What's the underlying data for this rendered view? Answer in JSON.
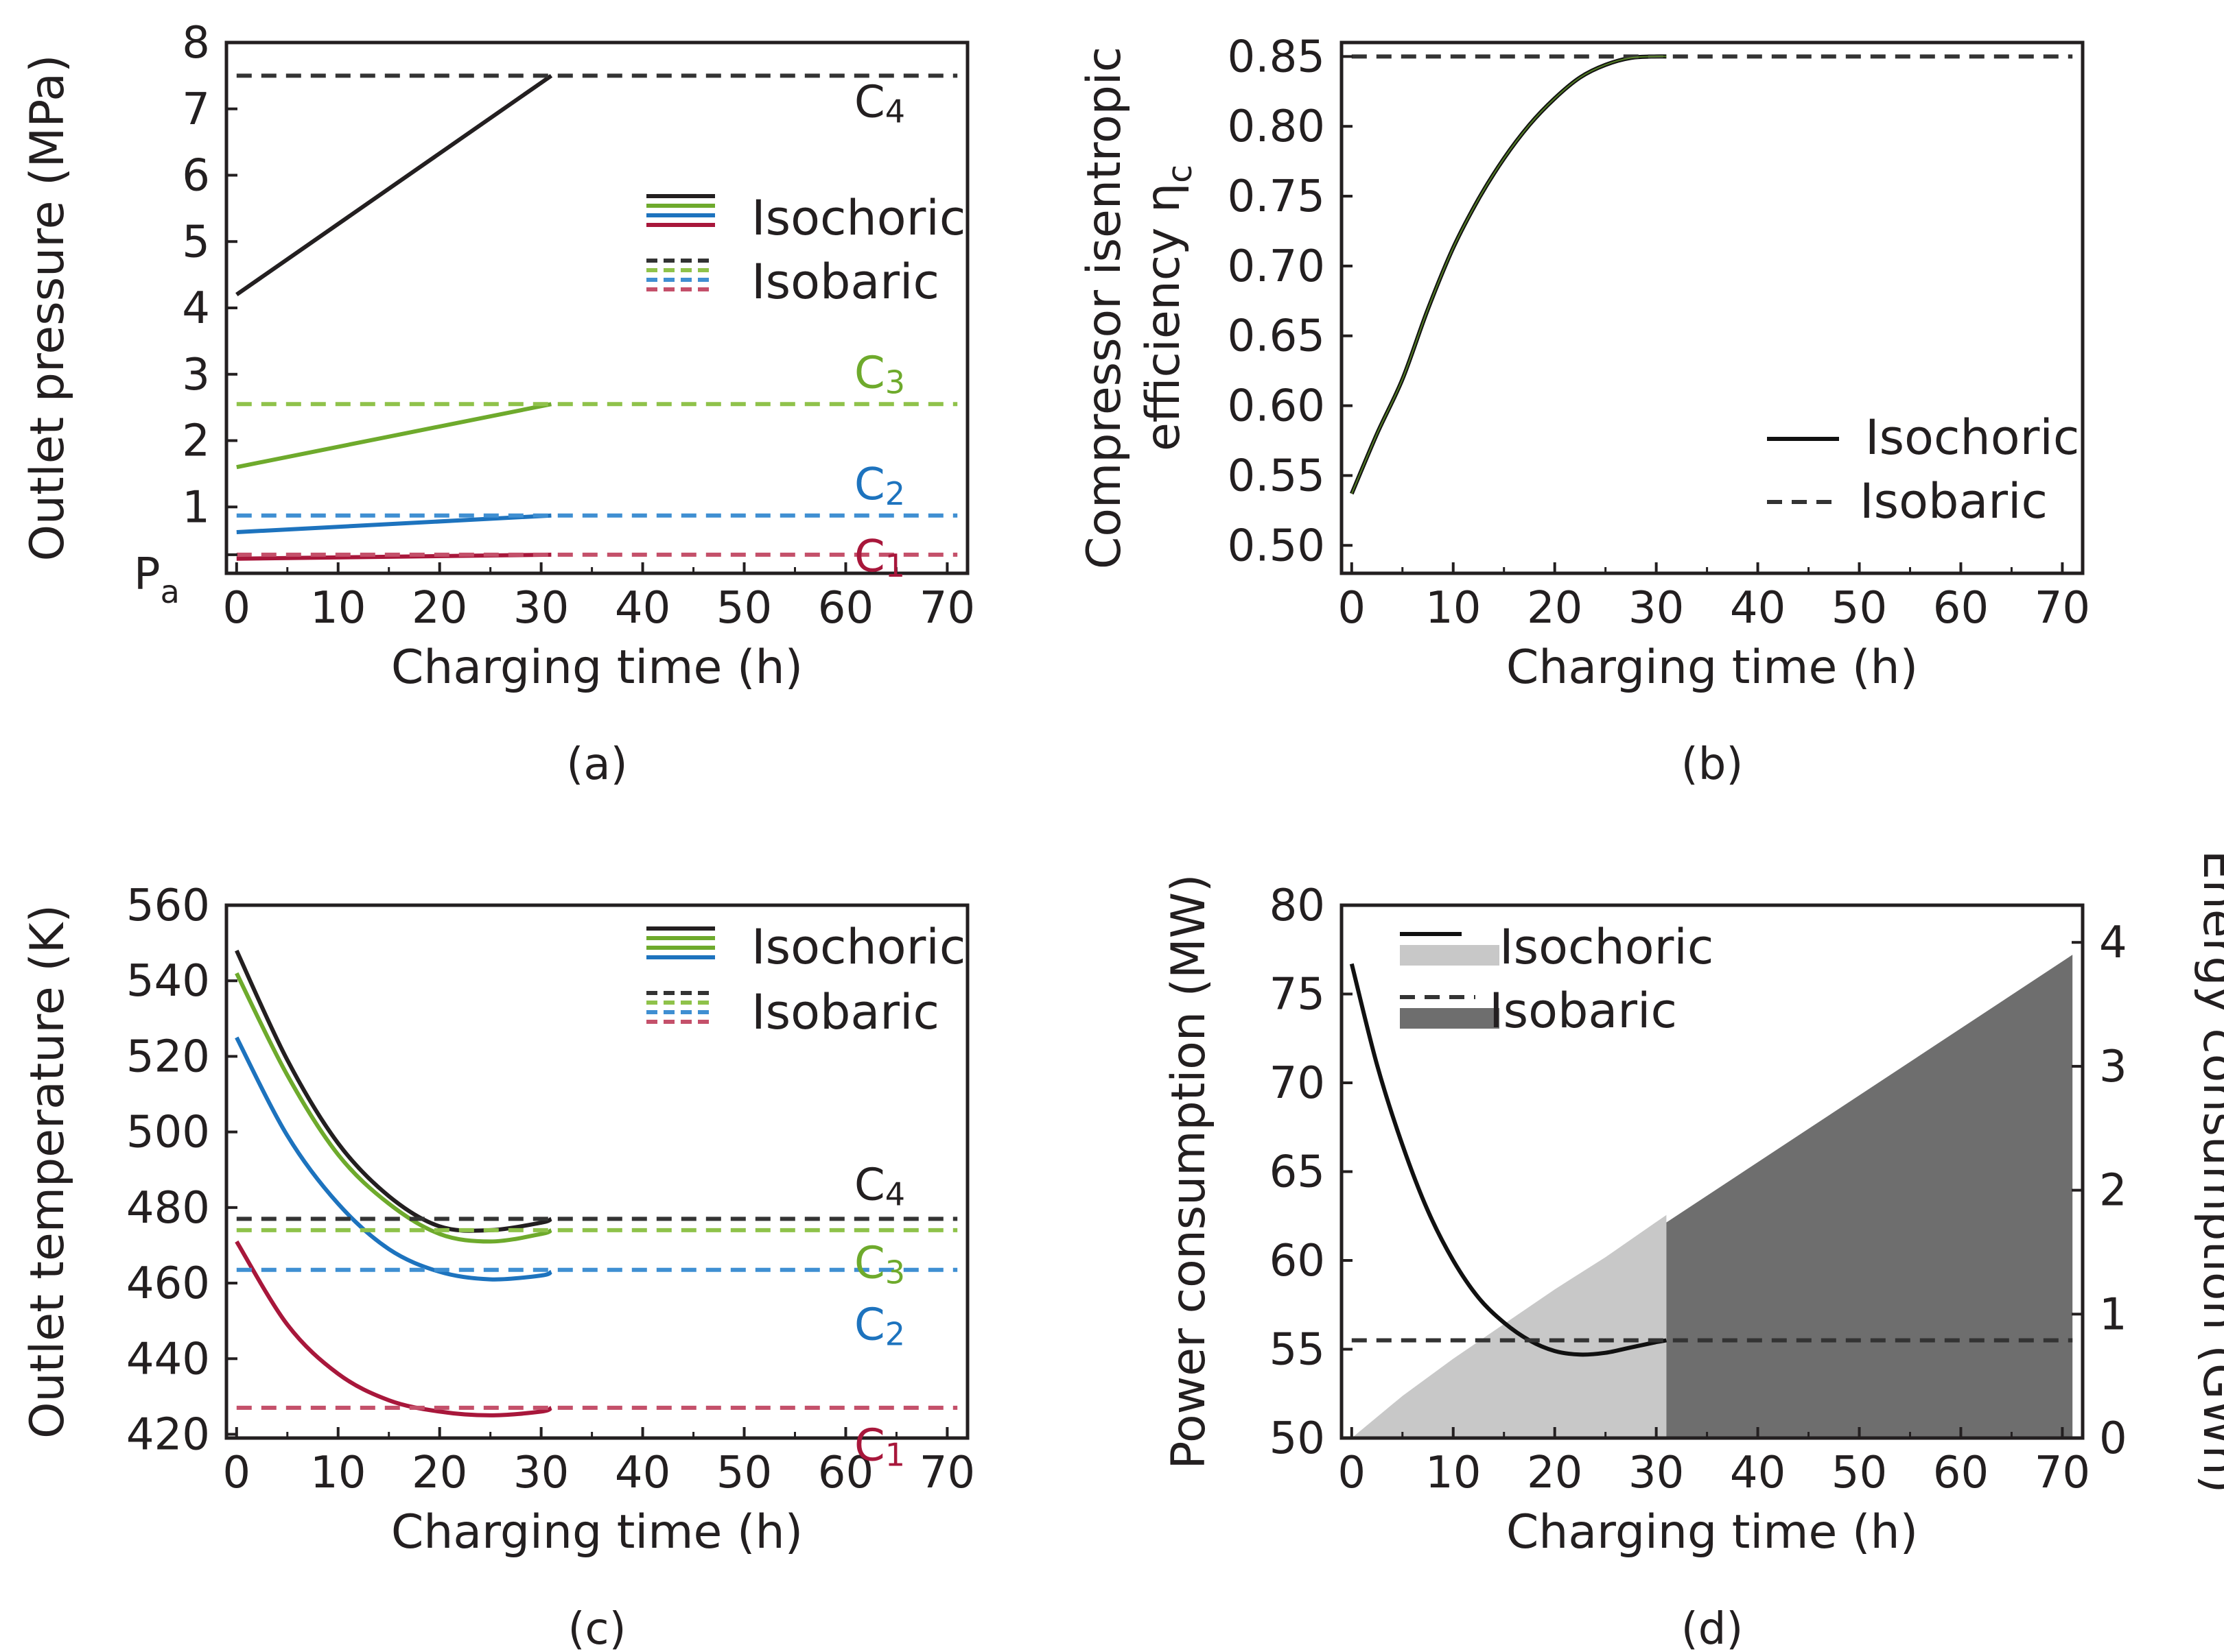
{
  "chart_data": [
    {
      "id": "a",
      "type": "line",
      "caption": "(a)",
      "xlabel": "Charging time (h)",
      "ylabel": "Outlet pressure (MPa)",
      "xlim": [
        -1,
        72
      ],
      "ylim": [
        0,
        8
      ],
      "xticks": [
        "0",
        "10",
        "20",
        "30",
        "40",
        "50",
        "60",
        "70"
      ],
      "yticks": [
        "1",
        "2",
        "3",
        "4",
        "5",
        "6",
        "7",
        "8"
      ],
      "extra_tick": {
        "base": "P",
        "sub": "a",
        "value": 0.28
      },
      "legend": [
        "Isochoric",
        "Isobaric"
      ],
      "stage_labels": [
        {
          "base": "C",
          "sub": "4",
          "value": 7.5,
          "color": "#231f20"
        },
        {
          "base": "C",
          "sub": "3",
          "value": 2.55,
          "color": "#6eaa2c"
        },
        {
          "base": "C",
          "sub": "2",
          "value": 0.87,
          "color": "#1d73be"
        },
        {
          "base": "C",
          "sub": "1",
          "value": 0.28,
          "color": "#a8173b"
        }
      ],
      "series": [
        {
          "name": "Isochoric C4",
          "style": "solid",
          "color": "#231f20",
          "x": [
            0,
            31
          ],
          "y": [
            4.2,
            7.5
          ]
        },
        {
          "name": "Isochoric C3",
          "style": "solid",
          "color": "#6eaa2c",
          "x": [
            0,
            31
          ],
          "y": [
            1.6,
            2.55
          ]
        },
        {
          "name": "Isochoric C2",
          "style": "solid",
          "color": "#1d73be",
          "x": [
            0,
            31
          ],
          "y": [
            0.62,
            0.87
          ]
        },
        {
          "name": "Isochoric C1",
          "style": "solid",
          "color": "#a8173b",
          "x": [
            0,
            31
          ],
          "y": [
            0.22,
            0.28
          ]
        },
        {
          "name": "Isobaric C4",
          "style": "dashed",
          "color": "#333333",
          "x": [
            0,
            71
          ],
          "y": [
            7.5,
            7.5
          ]
        },
        {
          "name": "Isobaric C3",
          "style": "dashed",
          "color": "#8fc24a",
          "x": [
            0,
            71
          ],
          "y": [
            2.55,
            2.55
          ]
        },
        {
          "name": "Isobaric C2",
          "style": "dashed",
          "color": "#3f8fd2",
          "x": [
            0,
            71
          ],
          "y": [
            0.87,
            0.87
          ]
        },
        {
          "name": "Isobaric C1",
          "style": "dashed",
          "color": "#c4506a",
          "x": [
            0,
            71
          ],
          "y": [
            0.28,
            0.28
          ]
        }
      ]
    },
    {
      "id": "b",
      "type": "line",
      "caption": "(b)",
      "xlabel": "Charging time (h)",
      "ylabel_line1": "Compressor isentropic",
      "ylabel_line2_base": "efficiency η",
      "ylabel_line2_sub": "c",
      "xlim": [
        -1,
        72
      ],
      "ylim": [
        0.48,
        0.86
      ],
      "xticks": [
        "0",
        "10",
        "20",
        "30",
        "40",
        "50",
        "60",
        "70"
      ],
      "yticks": [
        "0.50",
        "0.55",
        "0.60",
        "0.65",
        "0.70",
        "0.75",
        "0.80",
        "0.85"
      ],
      "legend": [
        "Isochoric",
        "Isobaric"
      ],
      "series": [
        {
          "name": "Isochoric",
          "style": "solid",
          "color": "#111111",
          "x": [
            0,
            2.5,
            5,
            7.5,
            10,
            12.5,
            15,
            17.5,
            20,
            22.5,
            25,
            27.5,
            30,
            31
          ],
          "y": [
            0.537,
            0.58,
            0.619,
            0.669,
            0.713,
            0.748,
            0.777,
            0.801,
            0.82,
            0.835,
            0.844,
            0.849,
            0.85,
            0.85
          ]
        },
        {
          "name": "Isobaric",
          "style": "dashed",
          "color": "#333333",
          "x": [
            0,
            71
          ],
          "y": [
            0.85,
            0.85
          ]
        }
      ]
    },
    {
      "id": "c",
      "type": "line",
      "caption": "(c)",
      "xlabel": "Charging time (h)",
      "ylabel": "Outlet temperature (K)",
      "xlim": [
        -1,
        72
      ],
      "ylim": [
        419,
        560
      ],
      "xticks": [
        "0",
        "10",
        "20",
        "30",
        "40",
        "50",
        "60",
        "70"
      ],
      "yticks": [
        "420",
        "440",
        "460",
        "480",
        "500",
        "520",
        "540",
        "560"
      ],
      "legend": [
        "Isochoric",
        "Isobaric"
      ],
      "stage_labels": [
        {
          "base": "C",
          "sub": "4",
          "value": 481,
          "color": "#231f20"
        },
        {
          "base": "C",
          "sub": "3",
          "value": 469,
          "color": "#6eaa2c"
        },
        {
          "base": "C",
          "sub": "2",
          "value": 457,
          "color": "#1d73be"
        },
        {
          "base": "C",
          "sub": "1",
          "value": 424,
          "color": "#a8173b"
        }
      ],
      "series": [
        {
          "name": "Isochoric C4",
          "style": "solid",
          "color": "#231f20",
          "x": [
            0,
            5,
            10,
            15,
            20,
            25,
            30,
            31
          ],
          "y": [
            548,
            519,
            497,
            483,
            475,
            474,
            476,
            477
          ]
        },
        {
          "name": "Isochoric C3",
          "style": "solid",
          "color": "#6eaa2c",
          "x": [
            0,
            5,
            10,
            15,
            20,
            25,
            30,
            31
          ],
          "y": [
            542,
            515,
            494,
            481,
            473,
            471,
            473,
            474
          ]
        },
        {
          "name": "Isochoric C2",
          "style": "solid",
          "color": "#1d73be",
          "x": [
            0,
            5,
            10,
            15,
            20,
            25,
            30,
            31
          ],
          "y": [
            525,
            499,
            481,
            469,
            463,
            461,
            462,
            463
          ]
        },
        {
          "name": "Isochoric C1",
          "style": "solid",
          "color": "#a8173b",
          "x": [
            0,
            5,
            10,
            15,
            20,
            25,
            30,
            31
          ],
          "y": [
            471,
            449,
            436,
            429,
            426,
            425,
            426,
            427
          ]
        },
        {
          "name": "Isobaric C4",
          "style": "dashed",
          "color": "#333333",
          "x": [
            0,
            71
          ],
          "y": [
            477,
            477
          ]
        },
        {
          "name": "Isobaric C3",
          "style": "dashed",
          "color": "#8fc24a",
          "x": [
            0,
            71
          ],
          "y": [
            474,
            474
          ]
        },
        {
          "name": "Isobaric C2",
          "style": "dashed",
          "color": "#3f8fd2",
          "x": [
            0,
            71
          ],
          "y": [
            463.5,
            463.5
          ]
        },
        {
          "name": "Isobaric C1",
          "style": "dashed",
          "color": "#c4506a",
          "x": [
            0,
            71
          ],
          "y": [
            427,
            427
          ]
        }
      ]
    },
    {
      "id": "d",
      "type": "line",
      "caption": "(d)",
      "xlabel": "Charging time (h)",
      "ylabel": "Power consumption (MW)",
      "y2label": "Energy consumption (GWh)",
      "xlim": [
        -1,
        72
      ],
      "ylim": [
        50,
        80
      ],
      "y2lim": [
        0,
        4.3
      ],
      "xticks": [
        "0",
        "10",
        "20",
        "30",
        "40",
        "50",
        "60",
        "70"
      ],
      "yticks": [
        "50",
        "55",
        "60",
        "65",
        "70",
        "75",
        "80"
      ],
      "y2ticks": [
        "0",
        "1",
        "2",
        "3",
        "4"
      ],
      "legend": [
        "Isochoric",
        "Isobaric"
      ],
      "series": [
        {
          "name": "Isochoric power",
          "style": "solid",
          "color": "#111111",
          "x": [
            0,
            2.5,
            5,
            7.5,
            10,
            12.5,
            15,
            17.5,
            20,
            22.5,
            25,
            27.5,
            30,
            31
          ],
          "y": [
            76.7,
            71.0,
            66.5,
            62.8,
            60.0,
            57.9,
            56.5,
            55.5,
            54.9,
            54.7,
            54.8,
            55.1,
            55.4,
            55.5
          ]
        },
        {
          "name": "Isobaric power",
          "style": "dashed",
          "color": "#333333",
          "x": [
            0,
            71
          ],
          "y": [
            55.5,
            55.5
          ]
        }
      ],
      "areas": [
        {
          "name": "Isochoric energy",
          "color": "#c8c8c8",
          "x": [
            0,
            5,
            10,
            15,
            20,
            25,
            31
          ],
          "y2": [
            0,
            0.34,
            0.64,
            0.92,
            1.2,
            1.46,
            1.8
          ]
        },
        {
          "name": "Isobaric energy",
          "color": "#6e6e6e",
          "x": [
            31,
            71
          ],
          "y2": [
            1.74,
            3.9
          ]
        }
      ]
    }
  ]
}
